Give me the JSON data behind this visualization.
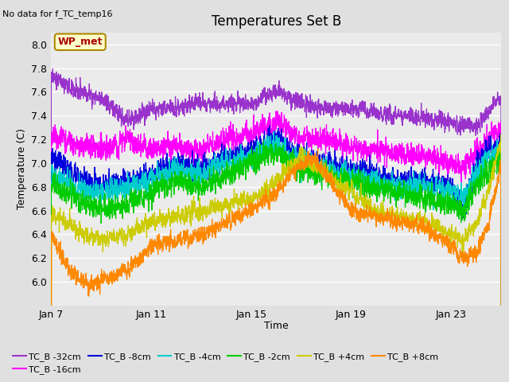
{
  "title": "Temperatures Set B",
  "subtitle": "No data for f_TC_temp16",
  "xlabel": "Time",
  "ylabel": "Temperature (C)",
  "ylim": [
    5.8,
    8.1
  ],
  "yticks": [
    6.0,
    6.2,
    6.4,
    6.6,
    6.8,
    7.0,
    7.2,
    7.4,
    7.6,
    7.8,
    8.0
  ],
  "wp_met_label": "WP_met",
  "wp_met_color": "#aa0000",
  "wp_met_bg": "#ffffcc",
  "wp_met_edge": "#aa8800",
  "series": [
    {
      "label": "TC_B -32cm",
      "color": "#9933cc"
    },
    {
      "label": "TC_B -16cm",
      "color": "#ff00ff"
    },
    {
      "label": "TC_B -8cm",
      "color": "#0000dd"
    },
    {
      "label": "TC_B -4cm",
      "color": "#00cccc"
    },
    {
      "label": "TC_B -2cm",
      "color": "#00cc00"
    },
    {
      "label": "TC_B +4cm",
      "color": "#cccc00"
    },
    {
      "label": "TC_B +8cm",
      "color": "#ff8800"
    }
  ],
  "xtick_labels": [
    "Jan 7",
    "Jan 11",
    "Jan 15",
    "Jan 19",
    "Jan 23"
  ],
  "xtick_days": [
    0,
    4,
    8,
    12,
    16
  ],
  "n_days": 18,
  "bg_color": "#e0e0e0",
  "plot_bg": "#ebebeb",
  "grid_color": "#ffffff",
  "legend_fontsize": 8,
  "title_fontsize": 12,
  "axis_fontsize": 9,
  "linewidth": 0.9
}
